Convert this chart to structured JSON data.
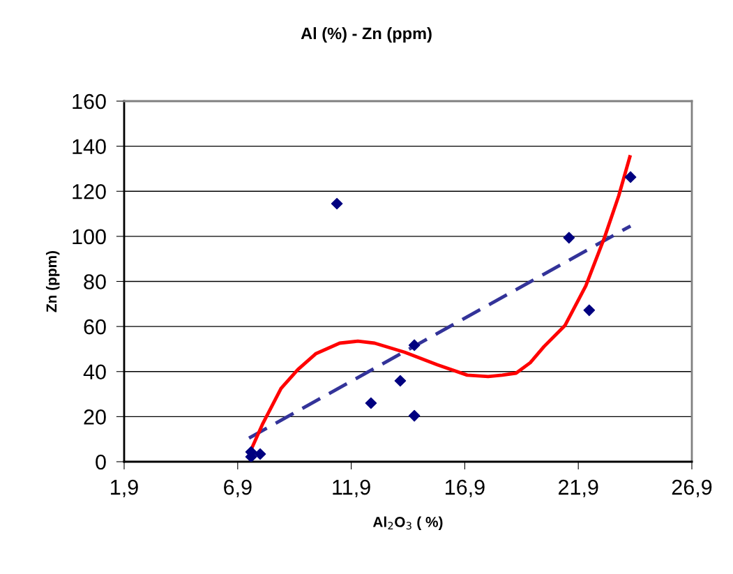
{
  "chart_data": {
    "type": "scatter",
    "title": "Al (%) - Zn (ppm)",
    "xlabel": "Al$_{2}$O$_{3}$ ( %)",
    "ylabel": "Zn (ppm)",
    "xlim": [
      1.9,
      26.9
    ],
    "xticks": [
      {
        "value": 1.9,
        "label": "1,9"
      },
      {
        "value": 6.9,
        "label": "6,9"
      },
      {
        "value": 11.9,
        "label": "11,9"
      },
      {
        "value": 16.9,
        "label": "16,9"
      },
      {
        "value": 21.9,
        "label": "21,9"
      },
      {
        "value": 26.9,
        "label": "26,9"
      }
    ],
    "ylim": [
      0,
      160
    ],
    "yticks": [
      0,
      20,
      40,
      60,
      80,
      100,
      120,
      140,
      160
    ],
    "grid": "y",
    "legend": false,
    "series": [
      {
        "color": "#000080",
        "marker": "diamond",
        "x": [
          7.49,
          7.49,
          7.89,
          11.27,
          12.77,
          14.06,
          14.68,
          14.68,
          21.49,
          22.38,
          24.2
        ],
        "values": [
          2.2,
          4.3,
          3.4,
          114.5,
          26,
          35.9,
          51.7,
          20.4,
          99.4,
          67.2,
          126.3
        ]
      },
      {
        "type": "line",
        "color": "#333399",
        "line_style": "dashed",
        "marker": "none",
        "x": [
          7.4,
          24.2
        ],
        "values": [
          10.5,
          104.6
        ]
      },
      {
        "type": "line",
        "color": "#ff0000",
        "line_style": "solid",
        "marker": "none",
        "x": [
          7.49,
          8.01,
          8.81,
          9.55,
          10.35,
          11.39,
          12.19,
          12.93,
          14.25,
          15.69,
          17.01,
          17.93,
          18.55,
          19.16,
          19.78,
          20.39,
          21.31,
          22.23,
          23.06,
          23.68,
          24.17
        ],
        "values": [
          5.3,
          17,
          32.5,
          40.9,
          48,
          52.6,
          53.5,
          52.6,
          48.6,
          43,
          38.4,
          37.8,
          38.4,
          39.3,
          43.9,
          51.1,
          60.4,
          78,
          99.7,
          118,
          135.3
        ]
      }
    ]
  }
}
